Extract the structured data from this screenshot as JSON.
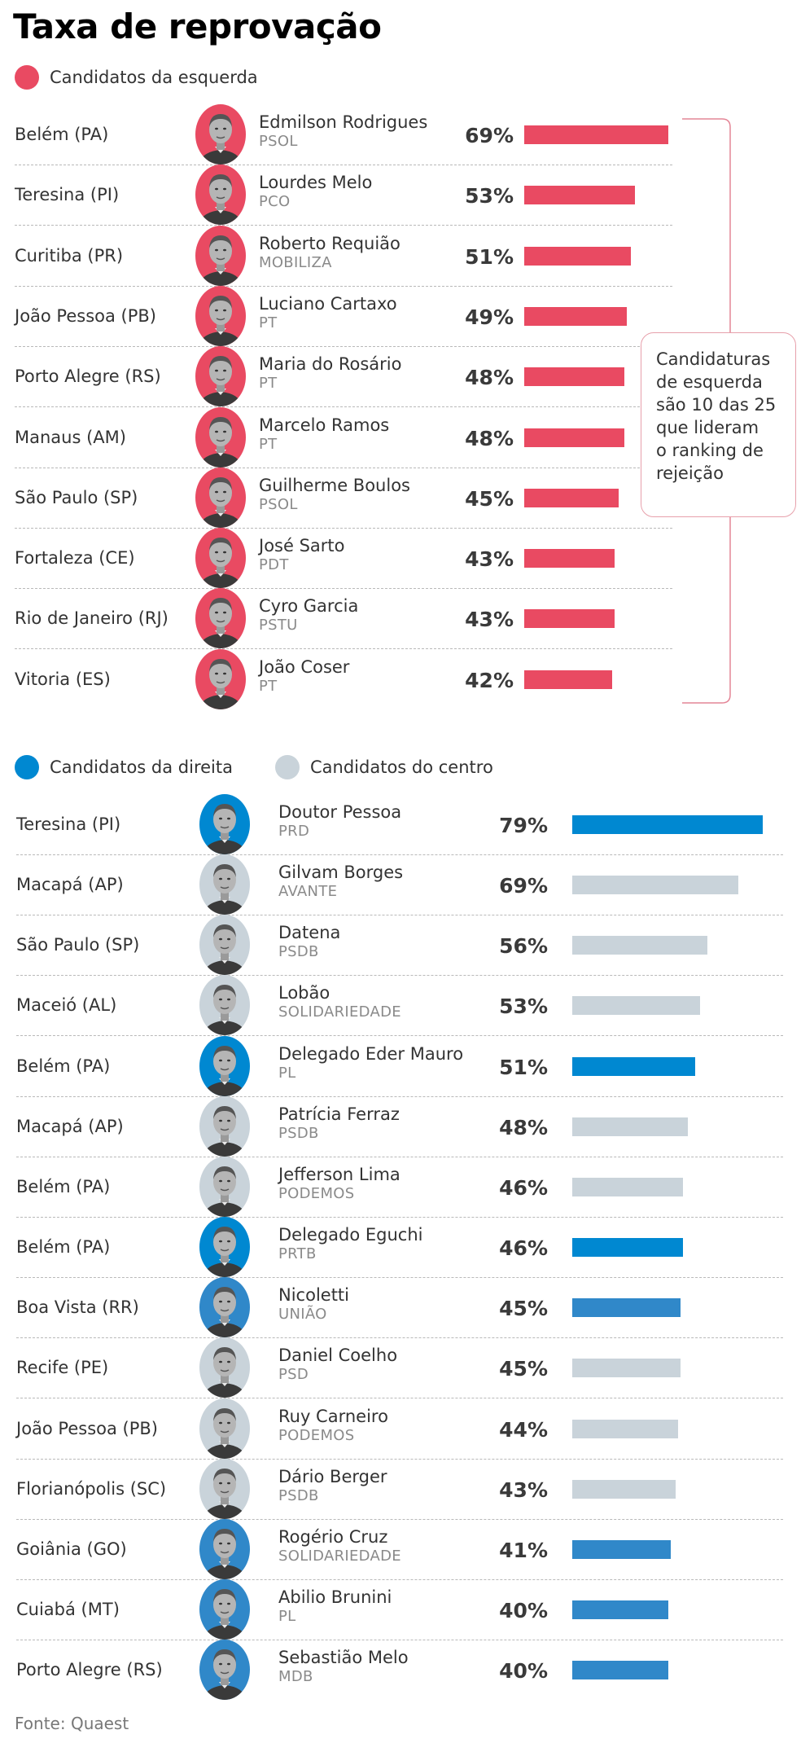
{
  "title": "Taxa de reprovação",
  "colors": {
    "esquerda": "#e94a62",
    "direita": "#0088d1",
    "direita_alt": "#3088c9",
    "centro": "#c9d3da",
    "bracket": "#e48596"
  },
  "left_section": {
    "legend": [
      {
        "label": "Candidatos da esquerda",
        "group": "esquerda"
      }
    ],
    "note_lines": [
      "Candidaturas",
      "de esquerda",
      "são 10 das 25",
      "que lideram",
      "o ranking de",
      "rejeição"
    ],
    "rows": [
      {
        "city": "Belém (PA)",
        "name": "Edmilson Rodrigues",
        "party": "PSOL",
        "pct_label": "69%"
      },
      {
        "city": "Teresina (PI)",
        "name": "Lourdes Melo",
        "party": "PCO",
        "pct_label": "53%"
      },
      {
        "city": "Curitiba (PR)",
        "name": "Roberto Requião",
        "party": "MOBILIZA",
        "pct_label": "51%"
      },
      {
        "city": "João Pessoa (PB)",
        "name": "Luciano Cartaxo",
        "party": "PT",
        "pct_label": "49%"
      },
      {
        "city": "Porto Alegre (RS)",
        "name": "Maria do Rosário",
        "party": "PT",
        "pct_label": "48%"
      },
      {
        "city": "Manaus (AM)",
        "name": "Marcelo Ramos",
        "party": "PT",
        "pct_label": "48%"
      },
      {
        "city": "São Paulo (SP)",
        "name": "Guilherme Boulos",
        "party": "PSOL",
        "pct_label": "45%"
      },
      {
        "city": "Fortaleza (CE)",
        "name": "José Sarto",
        "party": "PDT",
        "pct_label": "43%"
      },
      {
        "city": "Rio de Janeiro (RJ)",
        "name": "Cyro Garcia",
        "party": "PSTU",
        "pct_label": "43%"
      },
      {
        "city": "Vitoria (ES)",
        "name": "João Coser",
        "party": "PT",
        "pct_label": "42%"
      }
    ]
  },
  "right_section": {
    "legend": [
      {
        "label": "Candidatos da direita",
        "group": "direita"
      },
      {
        "label": "Candidatos do centro",
        "group": "centro"
      }
    ],
    "rows": [
      {
        "city": "Teresina (PI)",
        "name": "Doutor Pessoa",
        "party": "PRD",
        "pct_label": "79%",
        "group": "direita",
        "color": "#0088d1"
      },
      {
        "city": "Macapá (AP)",
        "name": "Gilvam Borges",
        "party": "AVANTE",
        "pct_label": "69%",
        "group": "centro",
        "color": "#c9d3da"
      },
      {
        "city": "São Paulo (SP)",
        "name": "Datena",
        "party": "PSDB",
        "pct_label": "56%",
        "group": "centro",
        "color": "#c9d3da"
      },
      {
        "city": "Maceió (AL)",
        "name": "Lobão",
        "party": "SOLIDARIEDADE",
        "pct_label": "53%",
        "group": "centro",
        "color": "#c9d3da"
      },
      {
        "city": "Belém (PA)",
        "name": "Delegado Eder Mauro",
        "party": "PL",
        "pct_label": "51%",
        "group": "direita",
        "color": "#0088d1"
      },
      {
        "city": "Macapá (AP)",
        "name": "Patrícia Ferraz",
        "party": "PSDB",
        "pct_label": "48%",
        "group": "centro",
        "color": "#c9d3da"
      },
      {
        "city": "Belém (PA)",
        "name": "Jefferson Lima",
        "party": "PODEMOS",
        "pct_label": "46%",
        "group": "centro",
        "color": "#c9d3da"
      },
      {
        "city": "Belém (PA)",
        "name": "Delegado Eguchi",
        "party": "PRTB",
        "pct_label": "46%",
        "group": "direita",
        "color": "#0088d1"
      },
      {
        "city": "Boa Vista (RR)",
        "name": "Nicoletti",
        "party": "UNIÃO",
        "pct_label": "45%",
        "group": "direita",
        "color": "#3088c9"
      },
      {
        "city": "Recife (PE)",
        "name": "Daniel Coelho",
        "party": "PSD",
        "pct_label": "45%",
        "group": "centro",
        "color": "#c9d3da"
      },
      {
        "city": "João Pessoa (PB)",
        "name": "Ruy Carneiro",
        "party": "PODEMOS",
        "pct_label": "44%",
        "group": "centro",
        "color": "#c9d3da"
      },
      {
        "city": "Florianópolis (SC)",
        "name": "Dário Berger",
        "party": "PSDB",
        "pct_label": "43%",
        "group": "centro",
        "color": "#c9d3da"
      },
      {
        "city": "Goiânia (GO)",
        "name": "Rogério Cruz",
        "party": "SOLIDARIEDADE",
        "pct_label": "41%",
        "group": "direita",
        "color": "#3088c9"
      },
      {
        "city": "Cuiabá (MT)",
        "name": "Abilio Brunini",
        "party": "PL",
        "pct_label": "40%",
        "group": "direita",
        "color": "#3088c9"
      },
      {
        "city": "Porto Alegre (RS)",
        "name": "Sebastião Melo",
        "party": "MDB",
        "pct_label": "40%",
        "group": "direita",
        "color": "#3088c9"
      }
    ]
  },
  "source": "Fonte: Quaest",
  "chart_data": [
    {
      "type": "bar",
      "orientation": "horizontal",
      "title": "Taxa de reprovação",
      "subtitle": "Candidatos da esquerda",
      "unit": "%",
      "xlim": [
        0,
        100
      ],
      "grid": false,
      "categories": [
        "Edmilson Rodrigues",
        "Lourdes Melo",
        "Roberto Requião",
        "Luciano Cartaxo",
        "Maria do Rosário",
        "Marcelo Ramos",
        "Guilherme Boulos",
        "José Sarto",
        "Cyro Garcia",
        "João Coser"
      ],
      "values": [
        69,
        53,
        51,
        49,
        48,
        48,
        45,
        43,
        43,
        42
      ]
    },
    {
      "type": "bar",
      "orientation": "horizontal",
      "title": "Taxa de reprovação",
      "subtitle": "Candidatos da direita / Candidatos do centro",
      "unit": "%",
      "xlim": [
        0,
        100
      ],
      "grid": false,
      "legend": [
        "Candidatos da direita",
        "Candidatos do centro"
      ],
      "legend_position": "top-left",
      "categories": [
        "Doutor Pessoa",
        "Gilvam Borges",
        "Datena",
        "Lobão",
        "Delegado Eder Mauro",
        "Patrícia Ferraz",
        "Jefferson Lima",
        "Delegado Eguchi",
        "Nicoletti",
        "Daniel Coelho",
        "Ruy Carneiro",
        "Dário Berger",
        "Rogério Cruz",
        "Abilio Brunini",
        "Sebastião Melo"
      ],
      "values": [
        79,
        69,
        56,
        53,
        51,
        48,
        46,
        46,
        45,
        45,
        44,
        43,
        41,
        40,
        40
      ]
    }
  ]
}
